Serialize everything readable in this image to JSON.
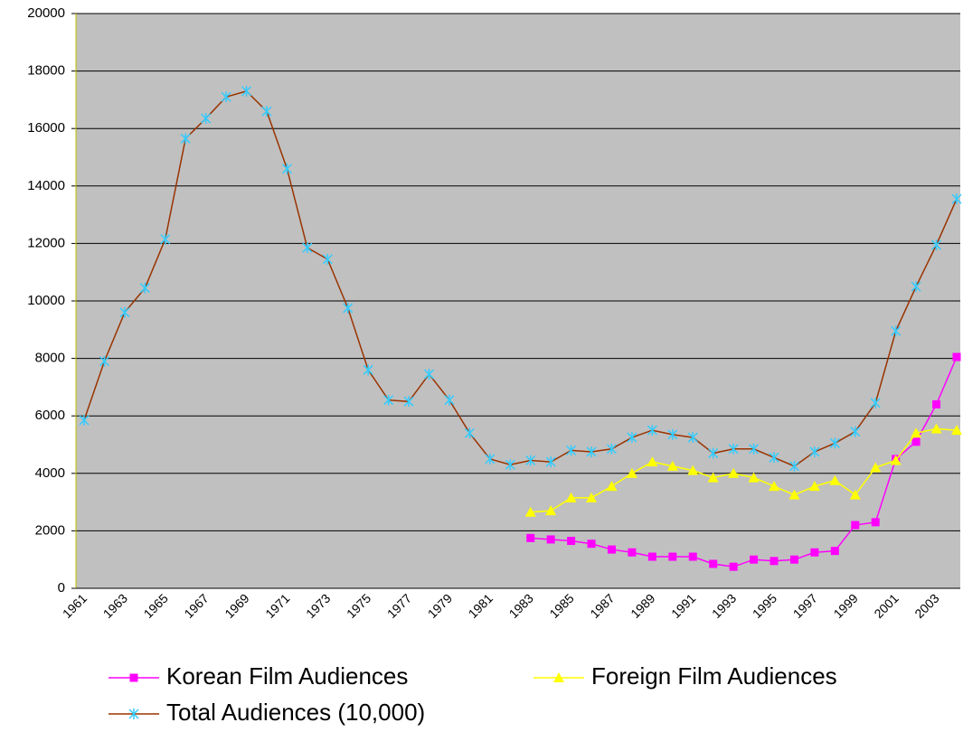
{
  "chart_data": {
    "type": "line",
    "categories": [
      "1961",
      null,
      "1963",
      null,
      "1965",
      null,
      "1967",
      null,
      "1969",
      null,
      "1971",
      null,
      "1973",
      null,
      "1975",
      null,
      "1977",
      null,
      "1979",
      null,
      "1981",
      null,
      "1983",
      null,
      "1985",
      null,
      "1987",
      null,
      "1989",
      null,
      "1991",
      null,
      "1993",
      null,
      "1995",
      null,
      "1997",
      null,
      "1999",
      null,
      "2001",
      null,
      "2003",
      null
    ],
    "series": [
      {
        "name": "Korean Film Audiences",
        "color": "#ff00ff",
        "marker_color": "#ff00ff",
        "marker": "square",
        "values": [
          null,
          null,
          null,
          null,
          null,
          null,
          null,
          null,
          null,
          null,
          null,
          null,
          null,
          null,
          null,
          null,
          null,
          null,
          null,
          null,
          null,
          null,
          1750,
          1700,
          1650,
          1550,
          1350,
          1250,
          1100,
          1100,
          1100,
          850,
          750,
          1000,
          950,
          1000,
          1250,
          1300,
          2200,
          2300,
          4500,
          5100,
          6400,
          8050
        ]
      },
      {
        "name": "Foreign Film Audiences",
        "color": "#ffff00",
        "marker_color": "#ffff00",
        "marker": "triangle",
        "values": [
          null,
          null,
          null,
          null,
          null,
          null,
          null,
          null,
          null,
          null,
          null,
          null,
          null,
          null,
          null,
          null,
          null,
          null,
          null,
          null,
          null,
          null,
          2650,
          2700,
          3150,
          3150,
          3550,
          4000,
          4400,
          4250,
          4100,
          3850,
          4000,
          3850,
          3550,
          3250,
          3550,
          3750,
          3250,
          4200,
          4450,
          5400,
          5550,
          5500
        ]
      },
      {
        "name": "Total Audiences (10,000)",
        "color": "#993300",
        "marker_color": "#33ccff",
        "marker": "star",
        "values": [
          5850,
          7900,
          9600,
          10450,
          12150,
          15650,
          16350,
          17100,
          17300,
          16600,
          14600,
          11850,
          11450,
          9750,
          7600,
          6550,
          6500,
          7450,
          6550,
          5400,
          4500,
          4300,
          4450,
          4400,
          4800,
          4750,
          4850,
          5250,
          5500,
          5350,
          5250,
          4700,
          4850,
          4850,
          4550,
          4250,
          4750,
          5050,
          5450,
          6450,
          8950,
          10500,
          11950,
          13550
        ]
      }
    ],
    "ylim": [
      0,
      20000
    ],
    "yticks": [
      0,
      2000,
      4000,
      6000,
      8000,
      10000,
      12000,
      14000,
      16000,
      18000,
      20000
    ],
    "grid": true,
    "plot_background": "#c0c0c0",
    "legend": "bottom"
  }
}
